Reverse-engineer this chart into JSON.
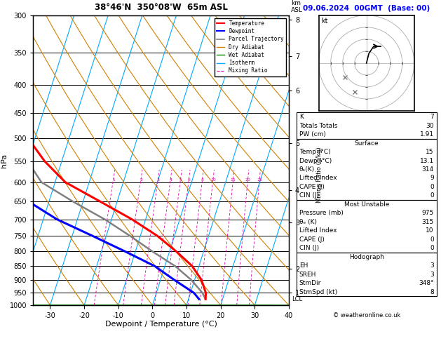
{
  "title": "38°46'N  350°08'W  65m ASL",
  "date_str": "09.06.2024  00GMT  (Base: 00)",
  "xlabel": "Dewpoint / Temperature (°C)",
  "ylabel_left": "hPa",
  "pressure_levels": [
    300,
    350,
    400,
    450,
    500,
    550,
    600,
    650,
    700,
    750,
    800,
    850,
    900,
    950,
    1000
  ],
  "temp_min": -35,
  "temp_max": 40,
  "pressure_min": 300,
  "pressure_max": 1000,
  "skew_factor": 27.0,
  "temperature_profile_temp": [
    15,
    14.5,
    12,
    8,
    2,
    -5,
    -14,
    -25,
    -37,
    -45,
    -52,
    -57,
    -60,
    -62,
    -64
  ],
  "temperature_profile_pressure": [
    975,
    950,
    900,
    850,
    800,
    750,
    700,
    650,
    600,
    550,
    500,
    450,
    400,
    350,
    300
  ],
  "dewpoint_profile_temp": [
    13.1,
    11,
    4,
    -3,
    -13,
    -24,
    -36,
    -46,
    -56,
    -58,
    -59,
    -60,
    -61,
    -63,
    -64
  ],
  "dewpoint_profile_pressure": [
    975,
    950,
    900,
    850,
    800,
    750,
    700,
    650,
    600,
    550,
    500,
    450,
    400,
    350,
    300
  ],
  "parcel_temp": [
    15,
    13.5,
    9,
    3,
    -5,
    -13,
    -22,
    -33,
    -44,
    -50,
    -55,
    -59,
    -61,
    -63,
    -64
  ],
  "parcel_pressure": [
    975,
    950,
    900,
    850,
    800,
    750,
    700,
    650,
    600,
    550,
    500,
    450,
    400,
    350,
    300
  ],
  "temp_color": "#ff0000",
  "dewpoint_color": "#0000ff",
  "parcel_color": "#808080",
  "dry_adiabat_color": "#d08000",
  "wet_adiabat_color": "#008800",
  "isotherm_color": "#00aaff",
  "mixing_ratio_color": "#dd00aa",
  "background_color": "#ffffff",
  "km_ticks": [
    1,
    2,
    3,
    4,
    5,
    6,
    7,
    8
  ],
  "km_pressures": [
    950,
    860,
    710,
    620,
    510,
    410,
    355,
    305
  ],
  "lcl_pressure": 975,
  "sounding_data": {
    "K": 7,
    "Totals_Totals": 30,
    "PW_cm": 1.91,
    "Surface_Temp": 15,
    "Surface_Dewp": 13.1,
    "theta_e_K": 314,
    "Lifted_Index": 9,
    "CAPE_J": 0,
    "CIN_J": 0,
    "MU_Pressure_mb": 975,
    "MU_theta_e_K": 315,
    "MU_Lifted_Index": 10,
    "MU_CAPE_J": 0,
    "MU_CIN_J": 0,
    "Hodograph_EH": 3,
    "Hodograph_SREH": 3,
    "StmDir": "348°",
    "StmSpd_kt": 8
  }
}
